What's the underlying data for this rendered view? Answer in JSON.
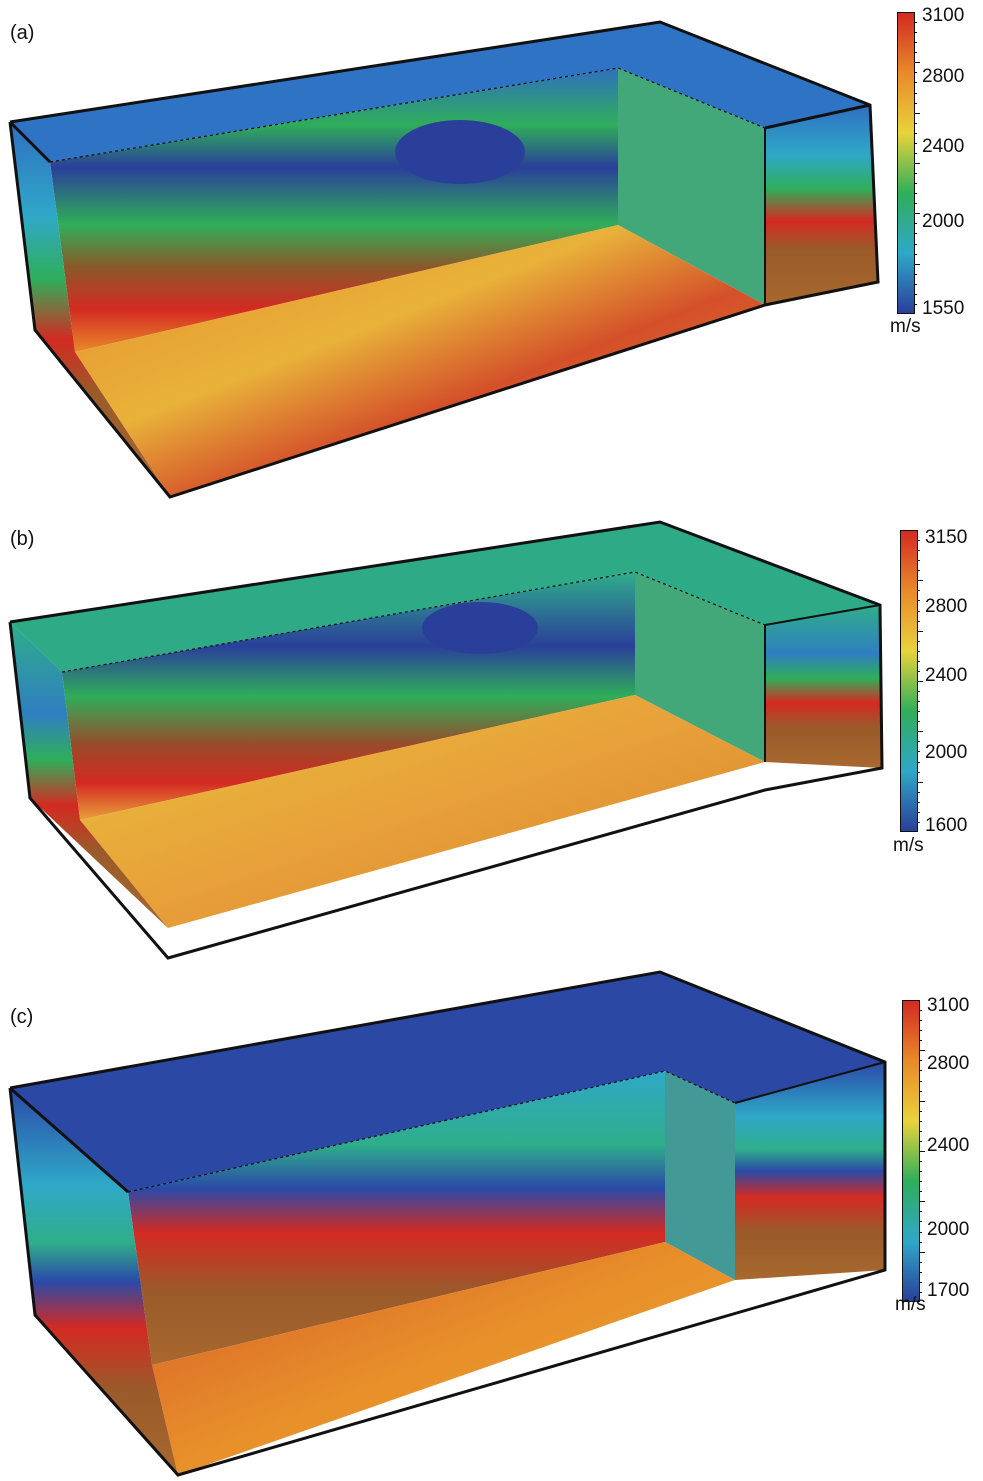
{
  "panels": [
    {
      "label": "(a)",
      "unit": "m/s",
      "colorbar": {
        "max": 3100,
        "min": 1550,
        "ticks": [
          "3100",
          "2800",
          "2400",
          "2000",
          "1550"
        ]
      }
    },
    {
      "label": "(b)",
      "unit": "m/s",
      "colorbar": {
        "max": 3150,
        "min": 1600,
        "ticks": [
          "3150",
          "2800",
          "2400",
          "2000",
          "1600"
        ]
      }
    },
    {
      "label": "(c)",
      "unit": "m/s",
      "colorbar": {
        "max": 3100,
        "min": 1700,
        "ticks": [
          "3100",
          "2800",
          "2400",
          "2000",
          "1700"
        ]
      }
    }
  ],
  "colors": {
    "deep_blue": "#2a3f9a",
    "blue": "#2f6fc0",
    "cyan": "#2fa8c8",
    "green": "#2fae5a",
    "yellow": "#e8d33a",
    "orange": "#e88a2a",
    "red": "#d42a22",
    "brown": "#9a5a2a"
  }
}
